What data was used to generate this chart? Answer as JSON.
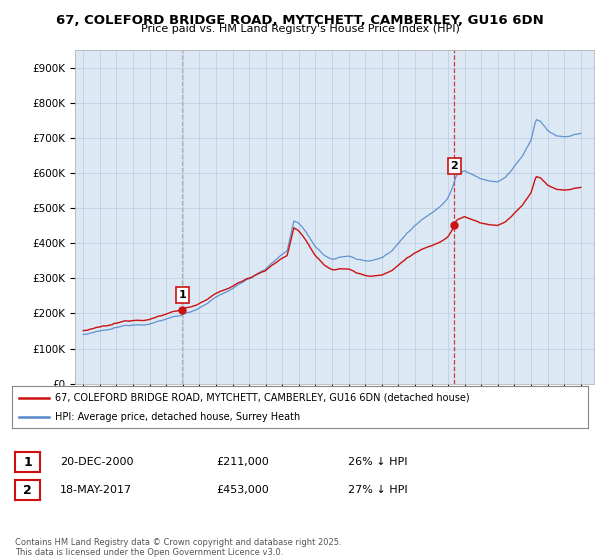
{
  "title_line1": "67, COLEFORD BRIDGE ROAD, MYTCHETT, CAMBERLEY, GU16 6DN",
  "title_line2": "Price paid vs. HM Land Registry's House Price Index (HPI)",
  "background_color": "#ffffff",
  "plot_bg_color": "#dce9f5",
  "hpi_color": "#5588cc",
  "price_color": "#cc1111",
  "vline1_color": "#aaaaaa",
  "vline2_color": "#cc1111",
  "marker1": {
    "date_num": 2000.97,
    "price": 211000
  },
  "marker2": {
    "date_num": 2017.38,
    "price": 453000
  },
  "ylim": [
    0,
    950000
  ],
  "xlim_start": 1994.5,
  "xlim_end": 2025.8,
  "yticks": [
    0,
    100000,
    200000,
    300000,
    400000,
    500000,
    600000,
    700000,
    800000,
    900000
  ],
  "ytick_labels": [
    "£0",
    "£100K",
    "£200K",
    "£300K",
    "£400K",
    "£500K",
    "£600K",
    "£700K",
    "£800K",
    "£900K"
  ],
  "xticks": [
    1995,
    1996,
    1997,
    1998,
    1999,
    2000,
    2001,
    2002,
    2003,
    2004,
    2005,
    2006,
    2007,
    2008,
    2009,
    2010,
    2011,
    2012,
    2013,
    2014,
    2015,
    2016,
    2017,
    2018,
    2019,
    2020,
    2021,
    2022,
    2023,
    2024,
    2025
  ],
  "legend_entries": [
    {
      "label": "67, COLEFORD BRIDGE ROAD, MYTCHETT, CAMBERLEY, GU16 6DN (detached house)",
      "color": "#cc1111"
    },
    {
      "label": "HPI: Average price, detached house, Surrey Heath",
      "color": "#5588cc"
    }
  ],
  "table_rows": [
    {
      "num": "1",
      "date": "20-DEC-2000",
      "price": "£211,000",
      "hpi": "26% ↓ HPI"
    },
    {
      "num": "2",
      "date": "18-MAY-2017",
      "price": "£453,000",
      "hpi": "27% ↓ HPI"
    }
  ],
  "footnote": "Contains HM Land Registry data © Crown copyright and database right 2025.\nThis data is licensed under the Open Government Licence v3.0.",
  "grid_color": "#bbccdd",
  "box_border_color": "#cc1111"
}
